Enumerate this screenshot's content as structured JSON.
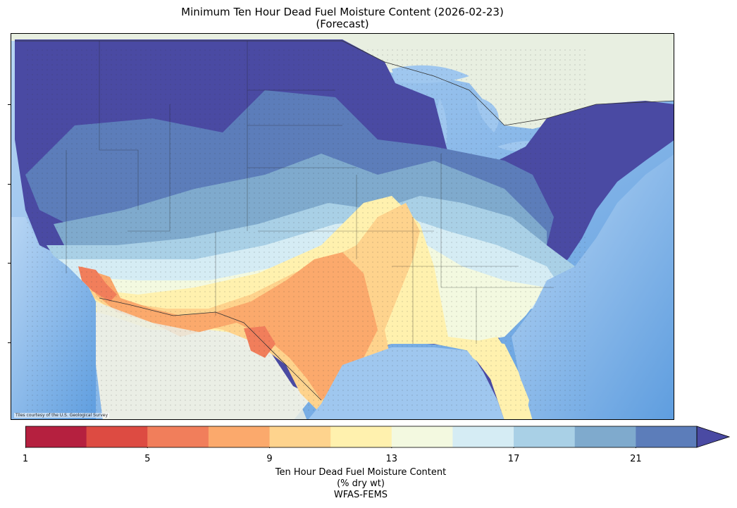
{
  "title_line1": "Minimum Ten Hour Dead Fuel Moisture Content (2026-02-23)",
  "title_line2": "(Forecast)",
  "attribution": "Tiles courtesy of the U.S. Geological Survey",
  "colorbar": {
    "label_line1": "Ten Hour Dead Fuel Moisture Content",
    "label_line2": "(% dry wt)",
    "label_line3": "WFAS-FEMS",
    "extend": "max",
    "tick_labels": [
      "1",
      "5",
      "9",
      "13",
      "17",
      "21"
    ],
    "boundaries": [
      1,
      3,
      5,
      7,
      9,
      11,
      13,
      15,
      17,
      19,
      21,
      23
    ],
    "colors": [
      "#b5203f",
      "#dd4b42",
      "#f17e5b",
      "#fba96c",
      "#fed38d",
      "#fff1ae",
      "#f3f9e0",
      "#d5ecf4",
      "#a9d0e6",
      "#7faacd",
      "#5c7dba"
    ],
    "extend_color": "#4a4aa3"
  },
  "map": {
    "land_color": "#eef0ea",
    "water_color": "#9fc7ef",
    "deep_water_color": "#6aa6e4",
    "extent": "Continental United States"
  }
}
